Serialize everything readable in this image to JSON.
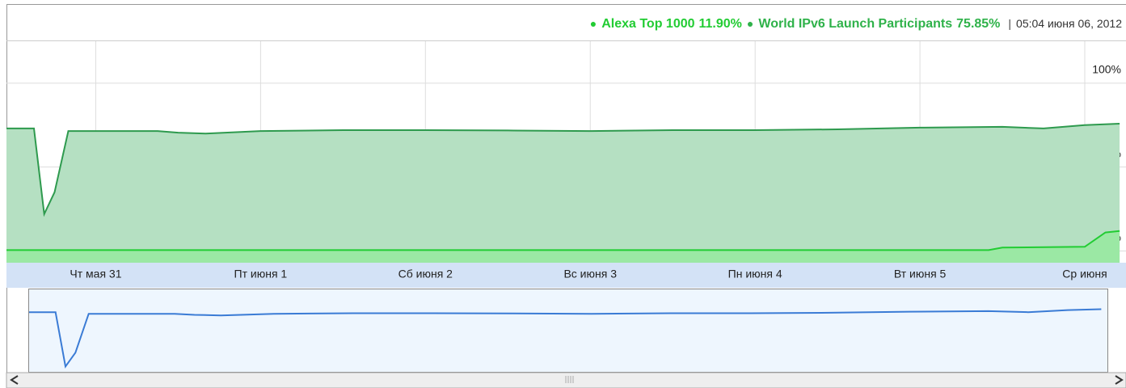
{
  "chart_data": {
    "type": "area",
    "current_time": "05:04 июня 06, 2012",
    "xlim": [
      "2012-05-30T11:00",
      "2012-06-06T06:00"
    ],
    "xticks": [
      {
        "value": "2012-05-31T00:00",
        "label": "Чт мая 31"
      },
      {
        "value": "2012-06-01T00:00",
        "label": "Пт июня 1"
      },
      {
        "value": "2012-06-02T00:00",
        "label": "Сб июня 2"
      },
      {
        "value": "2012-06-03T00:00",
        "label": "Вс июня 3"
      },
      {
        "value": "2012-06-04T00:00",
        "label": "Пн июня 4"
      },
      {
        "value": "2012-06-05T00:00",
        "label": "Вт июня 5"
      },
      {
        "value": "2012-06-06T00:00",
        "label": "Ср июня"
      }
    ],
    "ylim": [
      -7,
      125
    ],
    "yticks": [
      {
        "value": 0,
        "label": "0%"
      },
      {
        "value": 50,
        "label": "50%"
      },
      {
        "value": 100,
        "label": "100%"
      }
    ],
    "grid": true,
    "series": [
      {
        "name": "World IPv6 Launch Participants",
        "current_label": "75.85%",
        "color": "#2e9a4e",
        "fill": "#b5e0c2",
        "legend_color": "#2fb24a",
        "x": [
          "2012-05-30T11:00",
          "2012-05-30T15:00",
          "2012-05-30T16:30",
          "2012-05-30T18:00",
          "2012-05-30T20:00",
          "2012-05-31T00:00",
          "2012-05-31T09:00",
          "2012-05-31T12:00",
          "2012-05-31T16:00",
          "2012-06-01T00:00",
          "2012-06-01T12:00",
          "2012-06-02T00:00",
          "2012-06-02T12:00",
          "2012-06-03T00:00",
          "2012-06-03T12:00",
          "2012-06-04T00:00",
          "2012-06-04T12:00",
          "2012-06-05T00:00",
          "2012-06-05T12:00",
          "2012-06-05T18:00",
          "2012-06-06T00:00",
          "2012-06-06T05:04"
        ],
        "values": [
          73,
          73,
          22,
          35,
          71.5,
          71.5,
          71.5,
          70.5,
          70,
          71.5,
          72,
          72,
          71.8,
          71.5,
          72,
          72,
          72.5,
          73.5,
          74,
          73,
          75,
          75.85
        ]
      },
      {
        "name": "Alexa Top 1000",
        "current_label": "11.90%",
        "color": "#22cc33",
        "fill": "#9be8a4",
        "legend_color": "#22cc33",
        "x": [
          "2012-05-30T11:00",
          "2012-06-01T00:00",
          "2012-06-03T00:00",
          "2012-06-05T00:00",
          "2012-06-05T10:00",
          "2012-06-05T12:00",
          "2012-06-06T00:00",
          "2012-06-06T03:00",
          "2012-06-06T05:04"
        ],
        "values": [
          0.5,
          0.5,
          0.5,
          0.5,
          0.5,
          2,
          2.5,
          11,
          11.9
        ]
      }
    ]
  }
}
